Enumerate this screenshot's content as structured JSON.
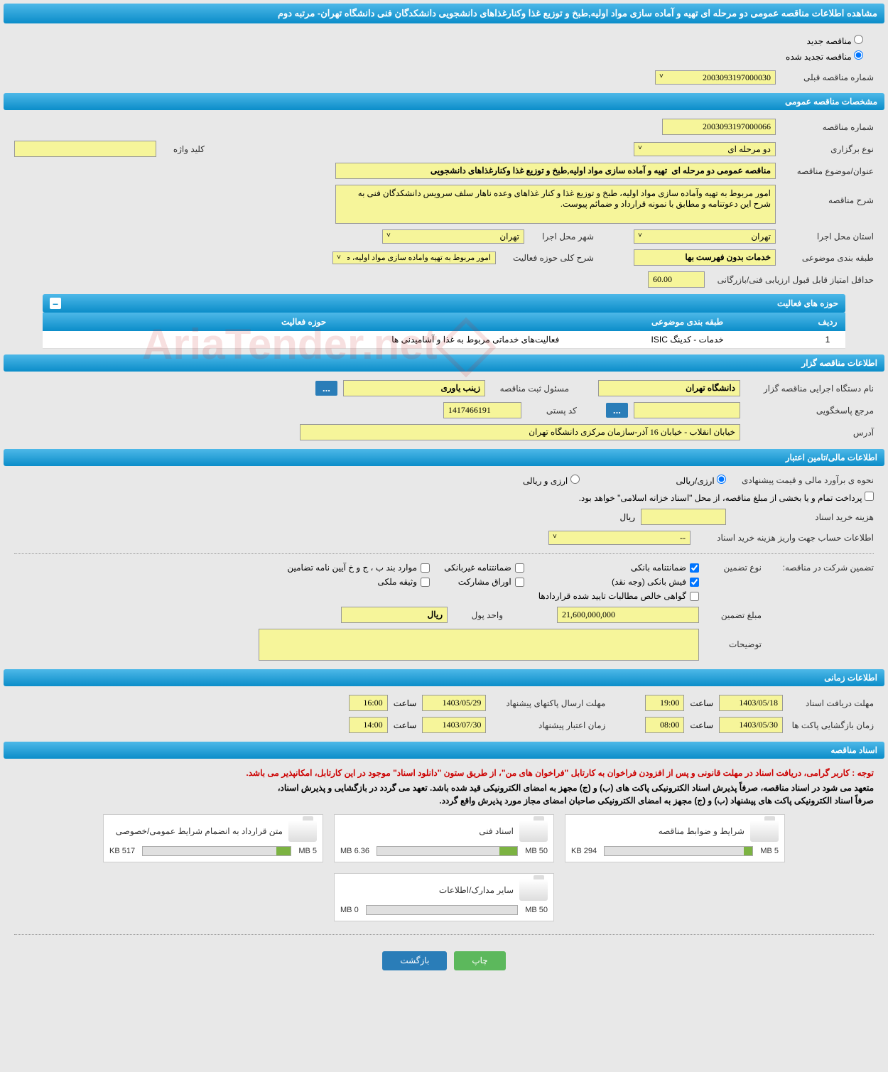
{
  "colors": {
    "header_gradient_top": "#4db8e8",
    "header_gradient_bottom": "#0b8dc9",
    "yellow_input": "#f6f59a",
    "page_bg": "#e8e8e8",
    "progress_green": "#7cb342",
    "btn_green": "#5cb85c",
    "btn_blue": "#2a7db8",
    "note_red": "#cc0000"
  },
  "page_title": "مشاهده اطلاعات مناقصه عمومی دو مرحله ای تهیه و آماده سازی مواد اولیه,طبخ و توزیع غذا وکنارغذاهای دانشجویی دانشکدگان فنی دانشگاه تهران- مرتبه دوم",
  "radio": {
    "new_tender": "مناقصه جدید",
    "renewed_tender": "مناقصه تجدید شده",
    "selected": "renewed"
  },
  "prev_number": {
    "label": "شماره مناقصه قبلی",
    "value": "2003093197000030"
  },
  "sections": {
    "general_spec": "مشخصات مناقصه عمومی",
    "activity_fields": "حوزه های فعالیت",
    "organizer_info": "اطلاعات مناقصه گزار",
    "financial_info": "اطلاعات مالی/تامین اعتبار",
    "time_info": "اطلاعات زمانی",
    "tender_docs": "اسناد مناقصه"
  },
  "general": {
    "tender_number_label": "شماره مناقصه",
    "tender_number": "2003093197000066",
    "holding_type_label": "نوع برگزاری",
    "holding_type": "دو مرحله ای",
    "keyword_label": "کلید واژه",
    "keyword": "",
    "subject_label": "عنوان/موضوع مناقصه",
    "subject": "مناقصه عمومی دو مرحله ای  تهیه و آماده سازی مواد اولیه,طبخ و توزیع غذا وکنارغذاهای دانشجویی",
    "description_label": "شرح مناقصه",
    "description": "امور مربوط به تهیه وآماده سازی مواد اولیه، طبخ و توزیع غذا و کنار غذاهای وعده ناهار سلف سرویس دانشکدگان فنی به شرح این دعوتنامه و مطابق با نمونه قرارداد و ضمائم پیوست.",
    "province_label": "استان محل اجرا",
    "province": "تهران",
    "city_label": "شهر محل اجرا",
    "city": "تهران",
    "subject_class_label": "طبقه بندی موضوعی",
    "subject_class": "خدمات بدون فهرست بها",
    "activity_scope_label": "شرح کلی حوزه فعالیت",
    "activity_scope": "امور مربوط به تهیه وآماده سازی مواد اولیه، طبخ و",
    "min_score_label": "حداقل امتیاز قابل قبول ارزیابی فنی/بازرگانی",
    "min_score": "60.00"
  },
  "activity_table": {
    "headers": [
      "ردیف",
      "طبقه بندی موضوعی",
      "حوزه فعالیت"
    ],
    "rows": [
      [
        "1",
        "خدمات - کدینگ ISIC",
        "فعالیت‌های خدماتی مربوط به غذا و آشامیدنی ها"
      ]
    ]
  },
  "organizer": {
    "org_label": "نام دستگاه اجرایی مناقصه گزار",
    "org_name": "دانشگاه تهران",
    "registrar_label": "مسئول ثبت مناقصه",
    "registrar_name": "زینب یاوری",
    "responder_label": "مرجع پاسخگویی",
    "responder": "",
    "postal_label": "کد پستی",
    "postal_code": "1417466191",
    "address_label": "آدرس",
    "address": "خیابان انقلاب - خیابان 16 آذر-سازمان مرکزی دانشگاه تهران"
  },
  "financial": {
    "estimate_method_label": "نحوه ی برآورد مالی و قیمت پیشنهادی",
    "currency_rial": "ارزی/ریالی",
    "currency_both": "ارزی و ریالی",
    "payment_note": "پرداخت تمام و یا بخشی از مبلغ مناقصه، از محل \"اسناد خزانه اسلامی\" خواهد بود.",
    "doc_cost_label": "هزینه خرید اسناد",
    "doc_cost": "",
    "doc_cost_unit": "ریال",
    "deposit_account_label": "اطلاعات حساب جهت واریز هزینه خرید اسناد",
    "deposit_account": "--",
    "guarantee_section_label": "تضمین شرکت در مناقصه:",
    "guarantee_type_label": "نوع تضمین",
    "guarantee_types": {
      "bank_guarantee": "ضمانتنامه بانکی",
      "nonbank_guarantee": "ضمانتنامه غیربانکی",
      "regulation_items": "موارد بند ب ، ج و خ آیین نامه تضامین",
      "bank_receipt": "فیش بانکی (وجه نقد)",
      "participation_bonds": "اوراق مشارکت",
      "property_deed": "وثیقه ملکی",
      "receivables_cert": "گواهی خالص مطالبات تایید شده قراردادها"
    },
    "guarantee_amount_label": "مبلغ تضمین",
    "guarantee_amount": "21,600,000,000",
    "currency_unit_label": "واحد پول",
    "currency_unit": "ریال",
    "notes_label": "توضیحات",
    "notes": ""
  },
  "timing": {
    "doc_receive_label": "مهلت دریافت اسناد",
    "doc_receive_date": "1403/05/18",
    "doc_receive_time_label": "ساعت",
    "doc_receive_time": "19:00",
    "bid_send_label": "مهلت ارسال پاکتهای پیشنهاد",
    "bid_send_date": "1403/05/29",
    "bid_send_time": "16:00",
    "open_label": "زمان بازگشایی پاکت ها",
    "open_date": "1403/05/30",
    "open_time": "08:00",
    "validity_label": "زمان اعتبار پیشنهاد",
    "validity_date": "1403/07/30",
    "validity_time": "14:00"
  },
  "docs": {
    "note_red": "توجه : کاربر گرامی، دریافت اسناد در مهلت قانونی و پس از افزودن فراخوان به کارتابل \"فراخوان های من\"، از طریق ستون \"دانلود اسناد\" موجود در این کارتابل، امکانپذیر می باشد.",
    "note_black1": "متعهد می شود در اسناد مناقصه، صرفاً پذیرش اسناد الکترونیکی پاکت های (ب) و (ج) مجهز به امضای الکترونیکی قید شده باشد. تعهد می گردد در بازگشایی و پذیرش اسناد،",
    "note_black2": "صرفاً اسناد الکترونیکی پاکت های پیشنهاد (ب) و (ج) مجهز به امضای الکترونیکی صاحبان امضای مجاز مورد پذیرش واقع گردد.",
    "files": [
      {
        "title": "شرایط و ضوابط مناقصه",
        "used": "294 KB",
        "total": "5 MB",
        "percent": 6
      },
      {
        "title": "اسناد فنی",
        "used": "6.36 MB",
        "total": "50 MB",
        "percent": 13
      },
      {
        "title": "متن قرارداد به انضمام شرایط عمومی/خصوصی",
        "used": "517 KB",
        "total": "5 MB",
        "percent": 10
      },
      {
        "title": "سایر مدارک/اطلاعات",
        "used": "0 MB",
        "total": "50 MB",
        "percent": 0
      }
    ]
  },
  "footer": {
    "print": "چاپ",
    "back": "بازگشت"
  }
}
